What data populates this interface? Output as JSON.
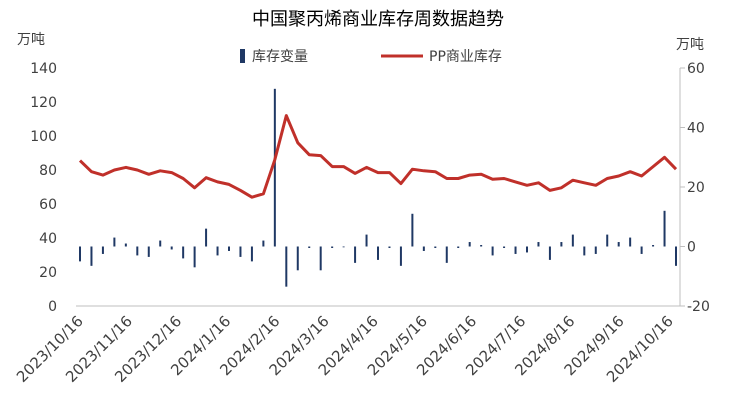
{
  "chart_data": {
    "type": "bar+line",
    "title": "中国聚丙烯商业库存周数据趋势",
    "left_axis": {
      "unit": "万吨",
      "min": 0,
      "max": 140,
      "ticks": [
        0,
        20,
        40,
        60,
        80,
        100,
        120,
        140
      ]
    },
    "right_axis": {
      "unit": "万吨",
      "min": -20,
      "max": 60,
      "ticks": [
        -20,
        0,
        20,
        40,
        60
      ]
    },
    "x_tick_labels": [
      "2023/10/16",
      "2023/11/16",
      "2023/12/16",
      "2024/1/16",
      "2024/2/16",
      "2024/3/16",
      "2024/4/16",
      "2024/5/16",
      "2024/6/16",
      "2024/7/16",
      "2024/8/16",
      "2024/9/16",
      "2024/10/16"
    ],
    "legend": [
      {
        "name": "库存变量",
        "color": "#1f3864",
        "kind": "bar"
      },
      {
        "name": "PP商业库存",
        "color": "#c0302a",
        "kind": "line"
      }
    ],
    "series": [
      {
        "name": "PP商业库存",
        "axis": "left",
        "values": [
          85.5,
          79,
          77,
          80,
          81.5,
          80,
          77.5,
          79.5,
          78.5,
          75,
          69.5,
          75.5,
          73,
          71.5,
          68,
          64,
          66,
          86,
          112,
          96,
          89,
          88.5,
          82,
          82,
          78,
          81.5,
          78.5,
          78.5,
          72,
          80.5,
          79.5,
          79,
          75,
          75,
          77,
          77.5,
          74.5,
          75,
          73,
          71,
          72.5,
          68,
          69.5,
          74,
          72.5,
          71,
          75,
          76.5,
          79,
          76.5,
          82,
          87.5,
          80.5
        ]
      },
      {
        "name": "库存变量",
        "axis": "right",
        "values": [
          -5,
          -6.5,
          -2.5,
          3,
          1,
          -3,
          -3.5,
          2,
          -1,
          -4,
          -7,
          6,
          -3,
          -1.5,
          -3.5,
          -5,
          2,
          53,
          -13.5,
          -8,
          -0.5,
          -8,
          -0.5,
          0,
          -5.5,
          4,
          -4.5,
          -0.5,
          -6.5,
          11,
          -1.5,
          -0.5,
          -5.5,
          -0.5,
          1.5,
          0.5,
          -3,
          -0.5,
          -2.5,
          -2,
          1.5,
          -4.5,
          1.5,
          4,
          -3,
          -2.5,
          4,
          1.5,
          3,
          -2.5,
          0.5,
          12,
          -6.5
        ]
      }
    ]
  }
}
